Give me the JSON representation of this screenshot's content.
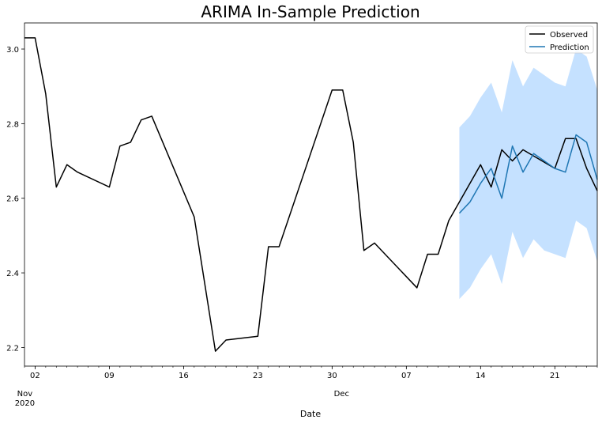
{
  "chart_data": {
    "type": "line",
    "title": "ARIMA In-Sample Prediction",
    "xlabel": "Date",
    "ylabel": "",
    "x_range": [
      "2020-11-01",
      "2020-12-25"
    ],
    "ylim": [
      2.15,
      3.07
    ],
    "grid": false,
    "legend_position": "top-right",
    "y_ticks": [
      2.2,
      2.4,
      2.6,
      2.8,
      3.0
    ],
    "y_tick_labels": [
      "2.2",
      "2.4",
      "2.6",
      "2.8",
      "3.0"
    ],
    "x_ticks": [
      {
        "date": "2020-11-02",
        "label": "02"
      },
      {
        "date": "2020-11-09",
        "label": "09"
      },
      {
        "date": "2020-11-16",
        "label": "16"
      },
      {
        "date": "2020-11-23",
        "label": "23"
      },
      {
        "date": "2020-11-30",
        "label": "30"
      },
      {
        "date": "2020-12-07",
        "label": "07"
      },
      {
        "date": "2020-12-14",
        "label": "14"
      },
      {
        "date": "2020-12-21",
        "label": "21"
      }
    ],
    "x_month_labels": [
      {
        "date": "2020-11-02",
        "lines": [
          "Nov",
          "2020"
        ]
      },
      {
        "date": "2020-11-30",
        "lines": [
          "Dec"
        ]
      }
    ],
    "series": [
      {
        "name": "Observed",
        "color": "#000000",
        "points": [
          [
            "2020-11-01",
            3.03
          ],
          [
            "2020-11-02",
            3.03
          ],
          [
            "2020-11-03",
            2.88
          ],
          [
            "2020-11-04",
            2.63
          ],
          [
            "2020-11-05",
            2.69
          ],
          [
            "2020-11-06",
            2.67
          ],
          [
            "2020-11-09",
            2.63
          ],
          [
            "2020-11-10",
            2.74
          ],
          [
            "2020-11-11",
            2.75
          ],
          [
            "2020-11-12",
            2.81
          ],
          [
            "2020-11-13",
            2.82
          ],
          [
            "2020-11-17",
            2.55
          ],
          [
            "2020-11-19",
            2.19
          ],
          [
            "2020-11-20",
            2.22
          ],
          [
            "2020-11-23",
            2.23
          ],
          [
            "2020-11-24",
            2.47
          ],
          [
            "2020-11-25",
            2.47
          ],
          [
            "2020-11-30",
            2.89
          ],
          [
            "2020-12-01",
            2.89
          ],
          [
            "2020-12-02",
            2.75
          ],
          [
            "2020-12-03",
            2.46
          ],
          [
            "2020-12-04",
            2.48
          ],
          [
            "2020-12-08",
            2.36
          ],
          [
            "2020-12-09",
            2.45
          ],
          [
            "2020-12-10",
            2.45
          ],
          [
            "2020-12-11",
            2.54
          ],
          [
            "2020-12-14",
            2.69
          ],
          [
            "2020-12-15",
            2.63
          ],
          [
            "2020-12-16",
            2.73
          ],
          [
            "2020-12-17",
            2.7
          ],
          [
            "2020-12-18",
            2.73
          ],
          [
            "2020-12-21",
            2.68
          ],
          [
            "2020-12-22",
            2.76
          ],
          [
            "2020-12-23",
            2.76
          ],
          [
            "2020-12-24",
            2.68
          ],
          [
            "2020-12-25",
            2.62
          ]
        ]
      },
      {
        "name": "Prediction",
        "color": "#1f77b4",
        "points": [
          [
            "2020-12-12",
            2.56
          ],
          [
            "2020-12-13",
            2.59
          ],
          [
            "2020-12-14",
            2.64
          ],
          [
            "2020-12-15",
            2.68
          ],
          [
            "2020-12-16",
            2.6
          ],
          [
            "2020-12-17",
            2.74
          ],
          [
            "2020-12-18",
            2.67
          ],
          [
            "2020-12-19",
            2.72
          ],
          [
            "2020-12-20",
            2.7
          ],
          [
            "2020-12-21",
            2.68
          ],
          [
            "2020-12-22",
            2.67
          ],
          [
            "2020-12-23",
            2.77
          ],
          [
            "2020-12-24",
            2.75
          ],
          [
            "2020-12-25",
            2.65
          ]
        ]
      }
    ],
    "confidence_band": {
      "color": "#a6d1ff",
      "x": [
        "2020-12-12",
        "2020-12-13",
        "2020-12-14",
        "2020-12-15",
        "2020-12-16",
        "2020-12-17",
        "2020-12-18",
        "2020-12-19",
        "2020-12-20",
        "2020-12-21",
        "2020-12-22",
        "2020-12-23",
        "2020-12-24",
        "2020-12-25"
      ],
      "lower": [
        2.33,
        2.36,
        2.41,
        2.45,
        2.37,
        2.51,
        2.44,
        2.49,
        2.46,
        2.45,
        2.44,
        2.54,
        2.52,
        2.43
      ],
      "upper": [
        2.79,
        2.82,
        2.87,
        2.91,
        2.83,
        2.97,
        2.9,
        2.95,
        2.93,
        2.91,
        2.9,
        3.0,
        2.98,
        2.89
      ]
    }
  }
}
